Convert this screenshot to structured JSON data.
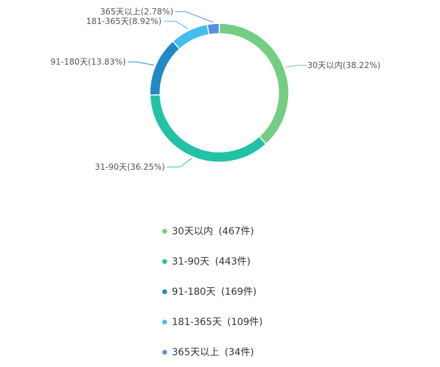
{
  "chart_data": {
    "type": "pie",
    "variant": "donut",
    "slices": [
      {
        "label": "30天以内",
        "percent": 38.22,
        "count": 467,
        "count_text": "(467件)",
        "slice_label": "30天以内(38.22%)",
        "color": "#74cd82"
      },
      {
        "label": "31-90天",
        "percent": 36.25,
        "count": 443,
        "count_text": "(443件)",
        "slice_label": "31-90天(36.25%)",
        "color": "#21c2a6"
      },
      {
        "label": "91-180天",
        "percent": 13.83,
        "count": 169,
        "count_text": "(169件)",
        "slice_label": "91-180天(13.83%)",
        "color": "#2189c6"
      },
      {
        "label": "181-365天",
        "percent": 8.92,
        "count": 109,
        "count_text": "(109件)",
        "slice_label": "181-365天(8.92%)",
        "color": "#45bdee"
      },
      {
        "label": "365天以上",
        "percent": 2.78,
        "count": 34,
        "count_text": "(34件)",
        "slice_label": "365天以上(2.78%)",
        "color": "#5a8fe4"
      }
    ],
    "legend_position": "bottom"
  }
}
